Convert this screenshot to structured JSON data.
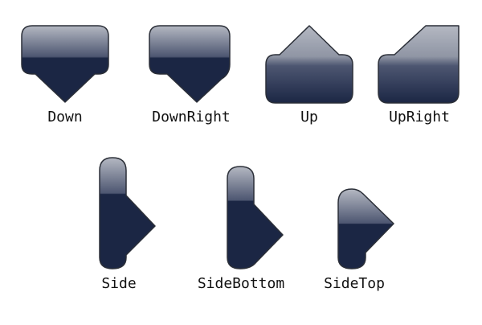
{
  "colors": {
    "top": "#b4b8c2",
    "mid": "#4d5671",
    "bottom": "#1b2644",
    "stroke": "#2b2f38",
    "label": "#111111"
  },
  "shapes": [
    {
      "id": "down",
      "label": "Down",
      "icon": "down-pointer-icon"
    },
    {
      "id": "downright",
      "label": "DownRight",
      "icon": "downright-pointer-icon"
    },
    {
      "id": "up",
      "label": "Up",
      "icon": "up-pointer-icon"
    },
    {
      "id": "upright",
      "label": "UpRight",
      "icon": "upright-pointer-icon"
    },
    {
      "id": "side",
      "label": "Side",
      "icon": "side-pointer-icon"
    },
    {
      "id": "sidebottom",
      "label": "SideBottom",
      "icon": "sidebottom-pointer-icon"
    },
    {
      "id": "sidetop",
      "label": "SideTop",
      "icon": "sidetop-pointer-icon"
    }
  ]
}
